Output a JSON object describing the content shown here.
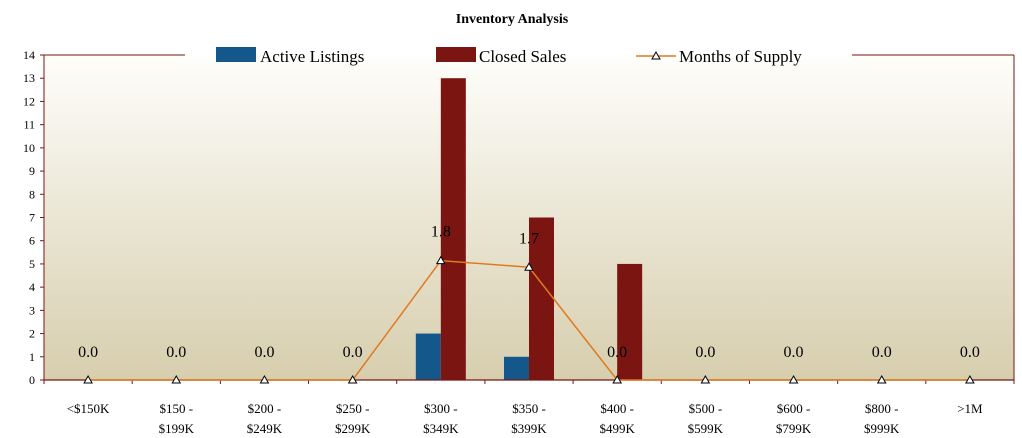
{
  "chart_data": {
    "type": "bar",
    "title": "Inventory Analysis",
    "categories": [
      [
        "<$150K"
      ],
      [
        "$150 -",
        "$199K"
      ],
      [
        "$200 -",
        "$249K"
      ],
      [
        "$250 -",
        "$299K"
      ],
      [
        "$300 -",
        "$349K"
      ],
      [
        "$350 -",
        "$399K"
      ],
      [
        "$400 -",
        "$499K"
      ],
      [
        "$500 -",
        "$599K"
      ],
      [
        "$600 -",
        "$799K"
      ],
      [
        "$800 -",
        "$999K"
      ],
      [
        ">1M"
      ]
    ],
    "series": [
      {
        "name": "Active Listings",
        "type": "bar",
        "color": "#14578a",
        "values": [
          0,
          0,
          0,
          0,
          2,
          1,
          0,
          0,
          0,
          0,
          0
        ]
      },
      {
        "name": "Closed Sales",
        "type": "bar",
        "color": "#7a1512",
        "values": [
          0,
          0,
          0,
          0,
          13,
          7,
          5,
          0,
          0,
          0,
          0
        ]
      },
      {
        "name": "Months of Supply",
        "type": "line",
        "color": "#e07a1f",
        "marker": "triangle",
        "values": [
          0.0,
          0.0,
          0.0,
          0.0,
          1.8,
          1.7,
          0.0,
          0.0,
          0.0,
          0.0,
          0.0
        ],
        "data_labels": [
          "0.0",
          "0.0",
          "0.0",
          "0.0",
          "1.8",
          "1.7",
          "0.0",
          "0.0",
          "0.0",
          "0.0",
          "0.0"
        ]
      }
    ],
    "ylim": [
      0,
      14
    ],
    "yticks": [
      0,
      1,
      2,
      3,
      4,
      5,
      6,
      7,
      8,
      9,
      10,
      11,
      12,
      13,
      14
    ],
    "line_display_scale": 2.857,
    "grid": false,
    "legend_position": "top",
    "background": {
      "top": "#fefefb",
      "bottom": "#d7ceae"
    },
    "axis_color": "#7a1512"
  }
}
